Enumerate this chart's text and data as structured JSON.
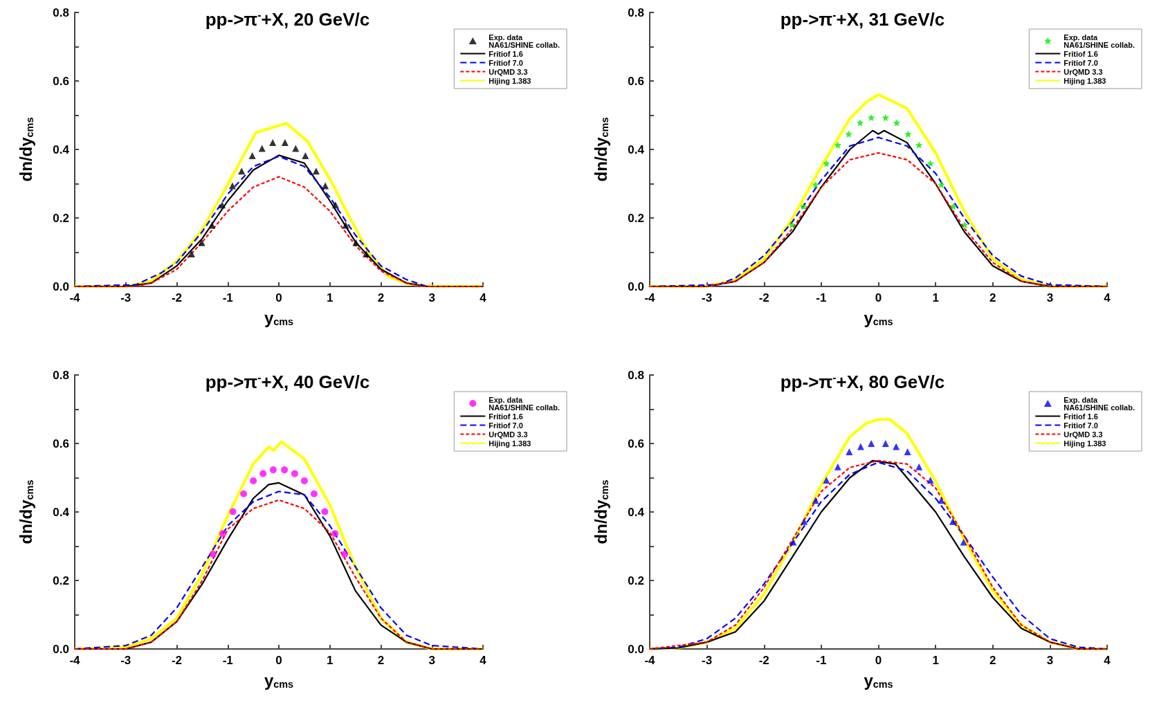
{
  "chart_data": [
    {
      "type": "line",
      "title": "pp->π$^{-}$+X, 20 GeV/c",
      "xlabel": "y$_{cms}$",
      "ylabel": "dn/dy$_{cms}$",
      "xlim": [
        -4,
        4
      ],
      "ylim": [
        0,
        0.8
      ],
      "xticks": [
        -4,
        -3,
        -2,
        -1,
        0,
        1,
        2,
        3,
        4
      ],
      "yticks": [
        {
          "value": 0,
          "label": "0.0"
        },
        {
          "value": 0.1,
          "label": null
        },
        {
          "value": 0.2,
          "label": "0.2"
        },
        {
          "value": 0.3,
          "label": null
        },
        {
          "value": 0.4,
          "label": "0.4"
        },
        {
          "value": 0.5,
          "label": null
        },
        {
          "value": 0.6,
          "label": "0.6"
        },
        {
          "value": 0.7,
          "label": null
        },
        {
          "value": 0.8,
          "label": "0.8"
        }
      ],
      "grid": false,
      "legend": "top right",
      "series": [
        {
          "name": "Exp. data\nNA61/SHINE collab.",
          "type": "scatter",
          "marker": "triangle",
          "color": "#000000",
          "x": [
            -1.71,
            -1.51,
            -1.31,
            -1.11,
            -0.91,
            -0.73,
            -0.52,
            -0.33,
            -0.12,
            0.12,
            0.33,
            0.52,
            0.73,
            0.91,
            1.11,
            1.31,
            1.51,
            1.71
          ],
          "values": [
            0.095,
            0.128,
            0.179,
            0.238,
            0.294,
            0.337,
            0.382,
            0.403,
            0.42,
            0.42,
            0.403,
            0.382,
            0.337,
            0.294,
            0.238,
            0.179,
            0.128,
            0.095
          ]
        },
        {
          "name": "Fritiof 1.6",
          "line_style": "solid",
          "color": "#000000",
          "x": [
            -4,
            -3,
            -2.5,
            -2,
            -1.5,
            -1,
            -0.5,
            0,
            0.5,
            1,
            1.5,
            2,
            2.5,
            2.9,
            4
          ],
          "values": [
            0,
            0,
            0.01,
            0.06,
            0.14,
            0.25,
            0.34,
            0.383,
            0.36,
            0.25,
            0.13,
            0.05,
            0.01,
            0,
            0
          ]
        },
        {
          "name": "Fritiof 7.0",
          "line_style": "dashed",
          "color": "#0000ff",
          "x": [
            -4,
            -2.8,
            -2.3,
            -2,
            -1.5,
            -1,
            -0.5,
            0,
            0.5,
            1,
            1.5,
            2,
            2.5,
            2.9,
            4
          ],
          "values": [
            0,
            0.005,
            0.04,
            0.07,
            0.16,
            0.27,
            0.35,
            0.38,
            0.35,
            0.26,
            0.15,
            0.06,
            0.02,
            0,
            0
          ]
        },
        {
          "name": "UrQMD 3.3",
          "line_style": "dotted",
          "color": "#ff0000",
          "x": [
            -4,
            -2.8,
            -2.5,
            -2,
            -1.5,
            -1,
            -0.5,
            0,
            0.5,
            1,
            1.5,
            2,
            2.5,
            2.8,
            4
          ],
          "values": [
            0,
            0,
            0.01,
            0.05,
            0.13,
            0.22,
            0.29,
            0.32,
            0.29,
            0.22,
            0.12,
            0.045,
            0.01,
            0,
            0
          ]
        },
        {
          "name": "Hijing 1.383",
          "line_style": "solid",
          "color": "#ffff00",
          "x": [
            -4,
            -3,
            -2.5,
            -1.99,
            -1.51,
            -1.03,
            -0.45,
            0,
            0.15,
            0.56,
            1.03,
            1.4,
            1.77,
            2.15,
            2.52,
            3,
            4
          ],
          "values": [
            0,
            0,
            0.015,
            0.075,
            0.164,
            0.29,
            0.449,
            0.47,
            0.476,
            0.424,
            0.306,
            0.197,
            0.097,
            0.029,
            0.008,
            0,
            0
          ]
        }
      ]
    },
    {
      "type": "line",
      "title": "pp->π$^{-}$+X, 31 GeV/c",
      "xlabel": "y$_{cms}$",
      "ylabel": "dn/dy$_{cms}$",
      "xlim": [
        -4,
        4
      ],
      "ylim": [
        0,
        0.8
      ],
      "xticks": [
        -4,
        -3,
        -2,
        -1,
        0,
        1,
        2,
        3,
        4
      ],
      "yticks": [
        {
          "value": 0,
          "label": "0.0"
        },
        {
          "value": 0.1,
          "label": null
        },
        {
          "value": 0.2,
          "label": "0.2"
        },
        {
          "value": 0.3,
          "label": null
        },
        {
          "value": 0.4,
          "label": "0.4"
        },
        {
          "value": 0.5,
          "label": null
        },
        {
          "value": 0.6,
          "label": "0.6"
        },
        {
          "value": 0.7,
          "label": null
        },
        {
          "value": 0.8,
          "label": "0.8"
        }
      ],
      "grid": false,
      "legend": "top right",
      "series": [
        {
          "name": "Exp. data\nNA61/SHINE collab.",
          "type": "scatter",
          "marker": "star",
          "color": "#00ee00",
          "x": [
            -1.51,
            -1.31,
            -1.1,
            -0.91,
            -0.71,
            -0.52,
            -0.32,
            -0.125,
            0.125,
            0.32,
            0.52,
            0.71,
            0.91,
            1.1,
            1.31,
            1.51
          ],
          "values": [
            0.18,
            0.234,
            0.297,
            0.359,
            0.413,
            0.445,
            0.478,
            0.493,
            0.493,
            0.478,
            0.445,
            0.413,
            0.359,
            0.297,
            0.234,
            0.18
          ]
        },
        {
          "name": "Fritiof 1.6",
          "line_style": "solid",
          "color": "#000000",
          "x": [
            -4,
            -3,
            -2.5,
            -2,
            -1.5,
            -1,
            -0.5,
            -0.1,
            0,
            0.1,
            0.5,
            1,
            1.5,
            2,
            2.5,
            3,
            4
          ],
          "values": [
            0,
            0,
            0.015,
            0.07,
            0.16,
            0.29,
            0.4,
            0.455,
            0.445,
            0.455,
            0.42,
            0.3,
            0.16,
            0.06,
            0.015,
            0,
            0
          ]
        },
        {
          "name": "Fritiof 7.0",
          "line_style": "dashed",
          "color": "#0000ff",
          "x": [
            -4,
            -2.8,
            -2.5,
            -2,
            -1.5,
            -1,
            -0.5,
            0,
            0.5,
            1,
            1.5,
            2,
            2.5,
            3,
            4
          ],
          "values": [
            0,
            0.005,
            0.025,
            0.09,
            0.19,
            0.31,
            0.41,
            0.435,
            0.41,
            0.33,
            0.2,
            0.09,
            0.03,
            0.005,
            0
          ]
        },
        {
          "name": "UrQMD 3.3",
          "line_style": "dotted",
          "color": "#ff0000",
          "x": [
            -4,
            -3,
            -2.5,
            -2,
            -1.5,
            -1,
            -0.5,
            0,
            0.5,
            1,
            1.5,
            2,
            2.5,
            3,
            4
          ],
          "values": [
            0,
            0,
            0.015,
            0.07,
            0.17,
            0.29,
            0.37,
            0.39,
            0.37,
            0.3,
            0.17,
            0.07,
            0.015,
            0,
            0
          ]
        },
        {
          "name": "Hijing 1.383",
          "line_style": "solid",
          "color": "#ffff00",
          "x": [
            -4,
            -3,
            -2.5,
            -2,
            -1.5,
            -1,
            -0.5,
            -0.2,
            0,
            0.5,
            1,
            1.5,
            2,
            2.5,
            3,
            4
          ],
          "values": [
            0,
            0,
            0.02,
            0.08,
            0.2,
            0.35,
            0.49,
            0.54,
            0.56,
            0.52,
            0.39,
            0.22,
            0.08,
            0.02,
            0,
            0
          ]
        }
      ]
    },
    {
      "type": "line",
      "title": "pp->π$^{-}$+X, 40 GeV/c",
      "xlabel": "y$_{cms}$",
      "ylabel": "dn/dy$_{cms}$",
      "xlim": [
        -4,
        4
      ],
      "ylim": [
        0,
        0.8
      ],
      "xticks": [
        -4,
        -3,
        -2,
        -1,
        0,
        1,
        2,
        3,
        4
      ],
      "yticks": [
        {
          "value": 0,
          "label": "0.0"
        },
        {
          "value": 0.1,
          "label": null
        },
        {
          "value": 0.2,
          "label": "0.2"
        },
        {
          "value": 0.3,
          "label": null
        },
        {
          "value": 0.4,
          "label": "0.4"
        },
        {
          "value": 0.5,
          "label": null
        },
        {
          "value": 0.6,
          "label": "0.6"
        },
        {
          "value": 0.7,
          "label": null
        },
        {
          "value": 0.8,
          "label": "0.8"
        }
      ],
      "grid": false,
      "legend": "top right",
      "series": [
        {
          "name": "Exp. data\nNA61/SHINE collab.",
          "type": "scatter",
          "marker": "circle",
          "color": "#ff00ff",
          "x": [
            -1.29,
            -1.1,
            -0.9,
            -0.69,
            -0.5,
            -0.31,
            -0.11,
            0.11,
            0.31,
            0.5,
            0.69,
            0.9,
            1.1,
            1.29
          ],
          "values": [
            0.277,
            0.337,
            0.401,
            0.453,
            0.491,
            0.512,
            0.523,
            0.523,
            0.512,
            0.491,
            0.453,
            0.401,
            0.337,
            0.277
          ]
        },
        {
          "name": "Fritiof 1.6",
          "line_style": "solid",
          "color": "#000000",
          "x": [
            -4,
            -3,
            -2.5,
            -2,
            -1.5,
            -1,
            -0.5,
            -0.2,
            0,
            0.5,
            1,
            1.5,
            2,
            2.5,
            3,
            4
          ],
          "values": [
            0,
            0,
            0.02,
            0.08,
            0.19,
            0.32,
            0.44,
            0.48,
            0.485,
            0.45,
            0.33,
            0.17,
            0.07,
            0.02,
            0,
            0
          ]
        },
        {
          "name": "Fritiof 7.0",
          "line_style": "dashed",
          "color": "#0000ff",
          "x": [
            -4,
            -3,
            -2.5,
            -2,
            -1.5,
            -1,
            -0.5,
            0,
            0.5,
            1,
            1.5,
            2,
            2.5,
            3,
            4
          ],
          "values": [
            0,
            0.01,
            0.04,
            0.12,
            0.24,
            0.36,
            0.43,
            0.46,
            0.45,
            0.36,
            0.24,
            0.12,
            0.04,
            0.01,
            0
          ]
        },
        {
          "name": "UrQMD 3.3",
          "line_style": "dotted",
          "color": "#ff0000",
          "x": [
            -4,
            -3,
            -2.5,
            -2,
            -1.5,
            -1,
            -0.5,
            0,
            0.5,
            1,
            1.5,
            2,
            2.5,
            3,
            4
          ],
          "values": [
            0,
            0,
            0.02,
            0.08,
            0.2,
            0.35,
            0.41,
            0.435,
            0.41,
            0.34,
            0.21,
            0.09,
            0.02,
            0,
            0
          ]
        },
        {
          "name": "Hijing 1.383",
          "line_style": "solid",
          "color": "#ffff00",
          "x": [
            -4,
            -3,
            -2.5,
            -2,
            -1.5,
            -1,
            -0.5,
            -0.2,
            -0.1,
            0.05,
            0.5,
            1,
            1.5,
            2,
            2.5,
            3,
            4
          ],
          "values": [
            0,
            0.005,
            0.03,
            0.09,
            0.22,
            0.39,
            0.54,
            0.59,
            0.58,
            0.605,
            0.555,
            0.42,
            0.24,
            0.09,
            0.02,
            0,
            0
          ]
        }
      ]
    },
    {
      "type": "line",
      "title": "pp->π$^{-}$+X, 80 GeV/c",
      "xlabel": "y$_{cms}$",
      "ylabel": "dn/dy$_{cms}$",
      "xlim": [
        -4,
        4
      ],
      "ylim": [
        0,
        0.8
      ],
      "xticks": [
        -4,
        -3,
        -2,
        -1,
        0,
        1,
        2,
        3,
        4
      ],
      "yticks": [
        {
          "value": 0,
          "label": "0.0"
        },
        {
          "value": 0.1,
          "label": null
        },
        {
          "value": 0.2,
          "label": "0.2"
        },
        {
          "value": 0.3,
          "label": null
        },
        {
          "value": 0.4,
          "label": "0.4"
        },
        {
          "value": 0.5,
          "label": null
        },
        {
          "value": 0.6,
          "label": "0.6"
        },
        {
          "value": 0.7,
          "label": null
        },
        {
          "value": 0.8,
          "label": "0.8"
        }
      ],
      "grid": false,
      "legend": "top right",
      "series": [
        {
          "name": "Exp. data\nNA61/SHINE collab.",
          "type": "scatter",
          "marker": "triangle",
          "color": "#0000ff",
          "x": [
            -1.49,
            -1.3,
            -1.1,
            -0.91,
            -0.71,
            -0.51,
            -0.31,
            -0.125,
            0.125,
            0.31,
            0.51,
            0.71,
            0.91,
            1.1,
            1.3,
            1.49
          ],
          "values": [
            0.312,
            0.372,
            0.434,
            0.493,
            0.532,
            0.576,
            0.591,
            0.6,
            0.6,
            0.591,
            0.576,
            0.532,
            0.493,
            0.434,
            0.372,
            0.312
          ]
        },
        {
          "name": "Fritiof 1.6",
          "line_style": "solid",
          "color": "#000000",
          "x": [
            -4,
            -3.5,
            -3,
            -2.5,
            -2,
            -1.5,
            -1,
            -0.5,
            -0.1,
            0.3,
            0.5,
            1,
            1.5,
            2,
            2.5,
            3,
            3.5,
            4
          ],
          "values": [
            0,
            0.003,
            0.02,
            0.05,
            0.14,
            0.27,
            0.4,
            0.5,
            0.55,
            0.54,
            0.5,
            0.4,
            0.27,
            0.15,
            0.06,
            0.02,
            0,
            0
          ]
        },
        {
          "name": "Fritiof 7.0",
          "line_style": "dashed",
          "color": "#0000ff",
          "x": [
            -4,
            -3.5,
            -3,
            -2.5,
            -2,
            -1.5,
            -1,
            -0.5,
            0,
            0.5,
            1,
            1.5,
            2,
            2.5,
            3,
            3.5,
            4
          ],
          "values": [
            0,
            0.005,
            0.03,
            0.09,
            0.19,
            0.31,
            0.43,
            0.51,
            0.545,
            0.52,
            0.44,
            0.33,
            0.21,
            0.1,
            0.03,
            0.005,
            0
          ]
        },
        {
          "name": "UrQMD 3.3",
          "line_style": "dotted",
          "color": "#ff0000",
          "x": [
            -4,
            -3,
            -2.5,
            -2,
            -1.5,
            -1,
            -0.5,
            0,
            0.5,
            1,
            1.5,
            2,
            2.5,
            3,
            3.5,
            4
          ],
          "values": [
            0,
            0.02,
            0.07,
            0.18,
            0.32,
            0.46,
            0.53,
            0.55,
            0.54,
            0.47,
            0.33,
            0.18,
            0.07,
            0.02,
            0,
            0
          ]
        },
        {
          "name": "Hijing 1.383",
          "line_style": "solid",
          "color": "#ffff00",
          "x": [
            -4,
            -3.5,
            -3,
            -2.5,
            -2,
            -1.5,
            -1,
            -0.5,
            -0.2,
            0,
            0.2,
            0.5,
            1,
            1.5,
            2,
            2.5,
            3,
            3.5,
            4
          ],
          "values": [
            0,
            0.003,
            0.02,
            0.06,
            0.16,
            0.31,
            0.48,
            0.62,
            0.66,
            0.67,
            0.67,
            0.63,
            0.49,
            0.32,
            0.17,
            0.07,
            0.02,
            0,
            0
          ]
        }
      ]
    }
  ]
}
